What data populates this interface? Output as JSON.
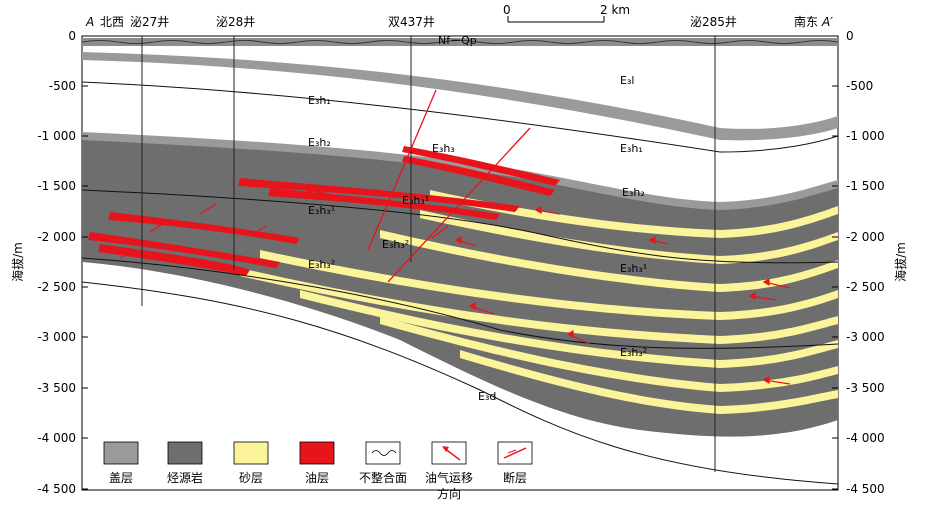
{
  "section": {
    "start_label": "A",
    "end_label": "A′",
    "west": "北西",
    "east": "南东",
    "wells": [
      "泌27井",
      "泌28井",
      "双437井",
      "泌285井"
    ]
  },
  "scale_bar": {
    "zero": "0",
    "max": "2 km"
  },
  "axis": {
    "ylabel": "海拔/m",
    "ticks": [
      "0",
      "-500",
      "-1 000",
      "-1 500",
      "-2 000",
      "-2 500",
      "-3 000",
      "-3 500",
      "-4 000",
      "-4 500"
    ]
  },
  "formations": {
    "nq": "Nf－Qp",
    "e3l": "E₃l",
    "e3h1_left": "E₃h₁",
    "e3h1_right": "E₃h₁",
    "e3h2_left": "E₃h₂",
    "e3h2_right": "E₃h₂",
    "e3h3_fault": "E₃h₃",
    "e3h31_a": "E₃h₃¹",
    "e3h31_b": "E₃h₃¹",
    "e3h31_c": "E₃h₃¹",
    "e3h32_a": "E₃h₃²",
    "e3h32_b": "E₃h₃²",
    "e3h32_c": "E₃h₃²",
    "e3d": "E₃d"
  },
  "legend": [
    {
      "label": "盖层",
      "color": "#9a9a9a"
    },
    {
      "label": "烃源岩",
      "color": "#6e6e6e"
    },
    {
      "label": "砂层",
      "color": "#fbf49a"
    },
    {
      "label": "油层",
      "color": "#e8141b"
    },
    {
      "label": "不整合面",
      "icon": "wave-icon"
    },
    {
      "label": "油气运移",
      "label2": "方向",
      "icon": "arrow-icon"
    },
    {
      "label": "断层",
      "icon": "fault-icon"
    }
  ]
}
